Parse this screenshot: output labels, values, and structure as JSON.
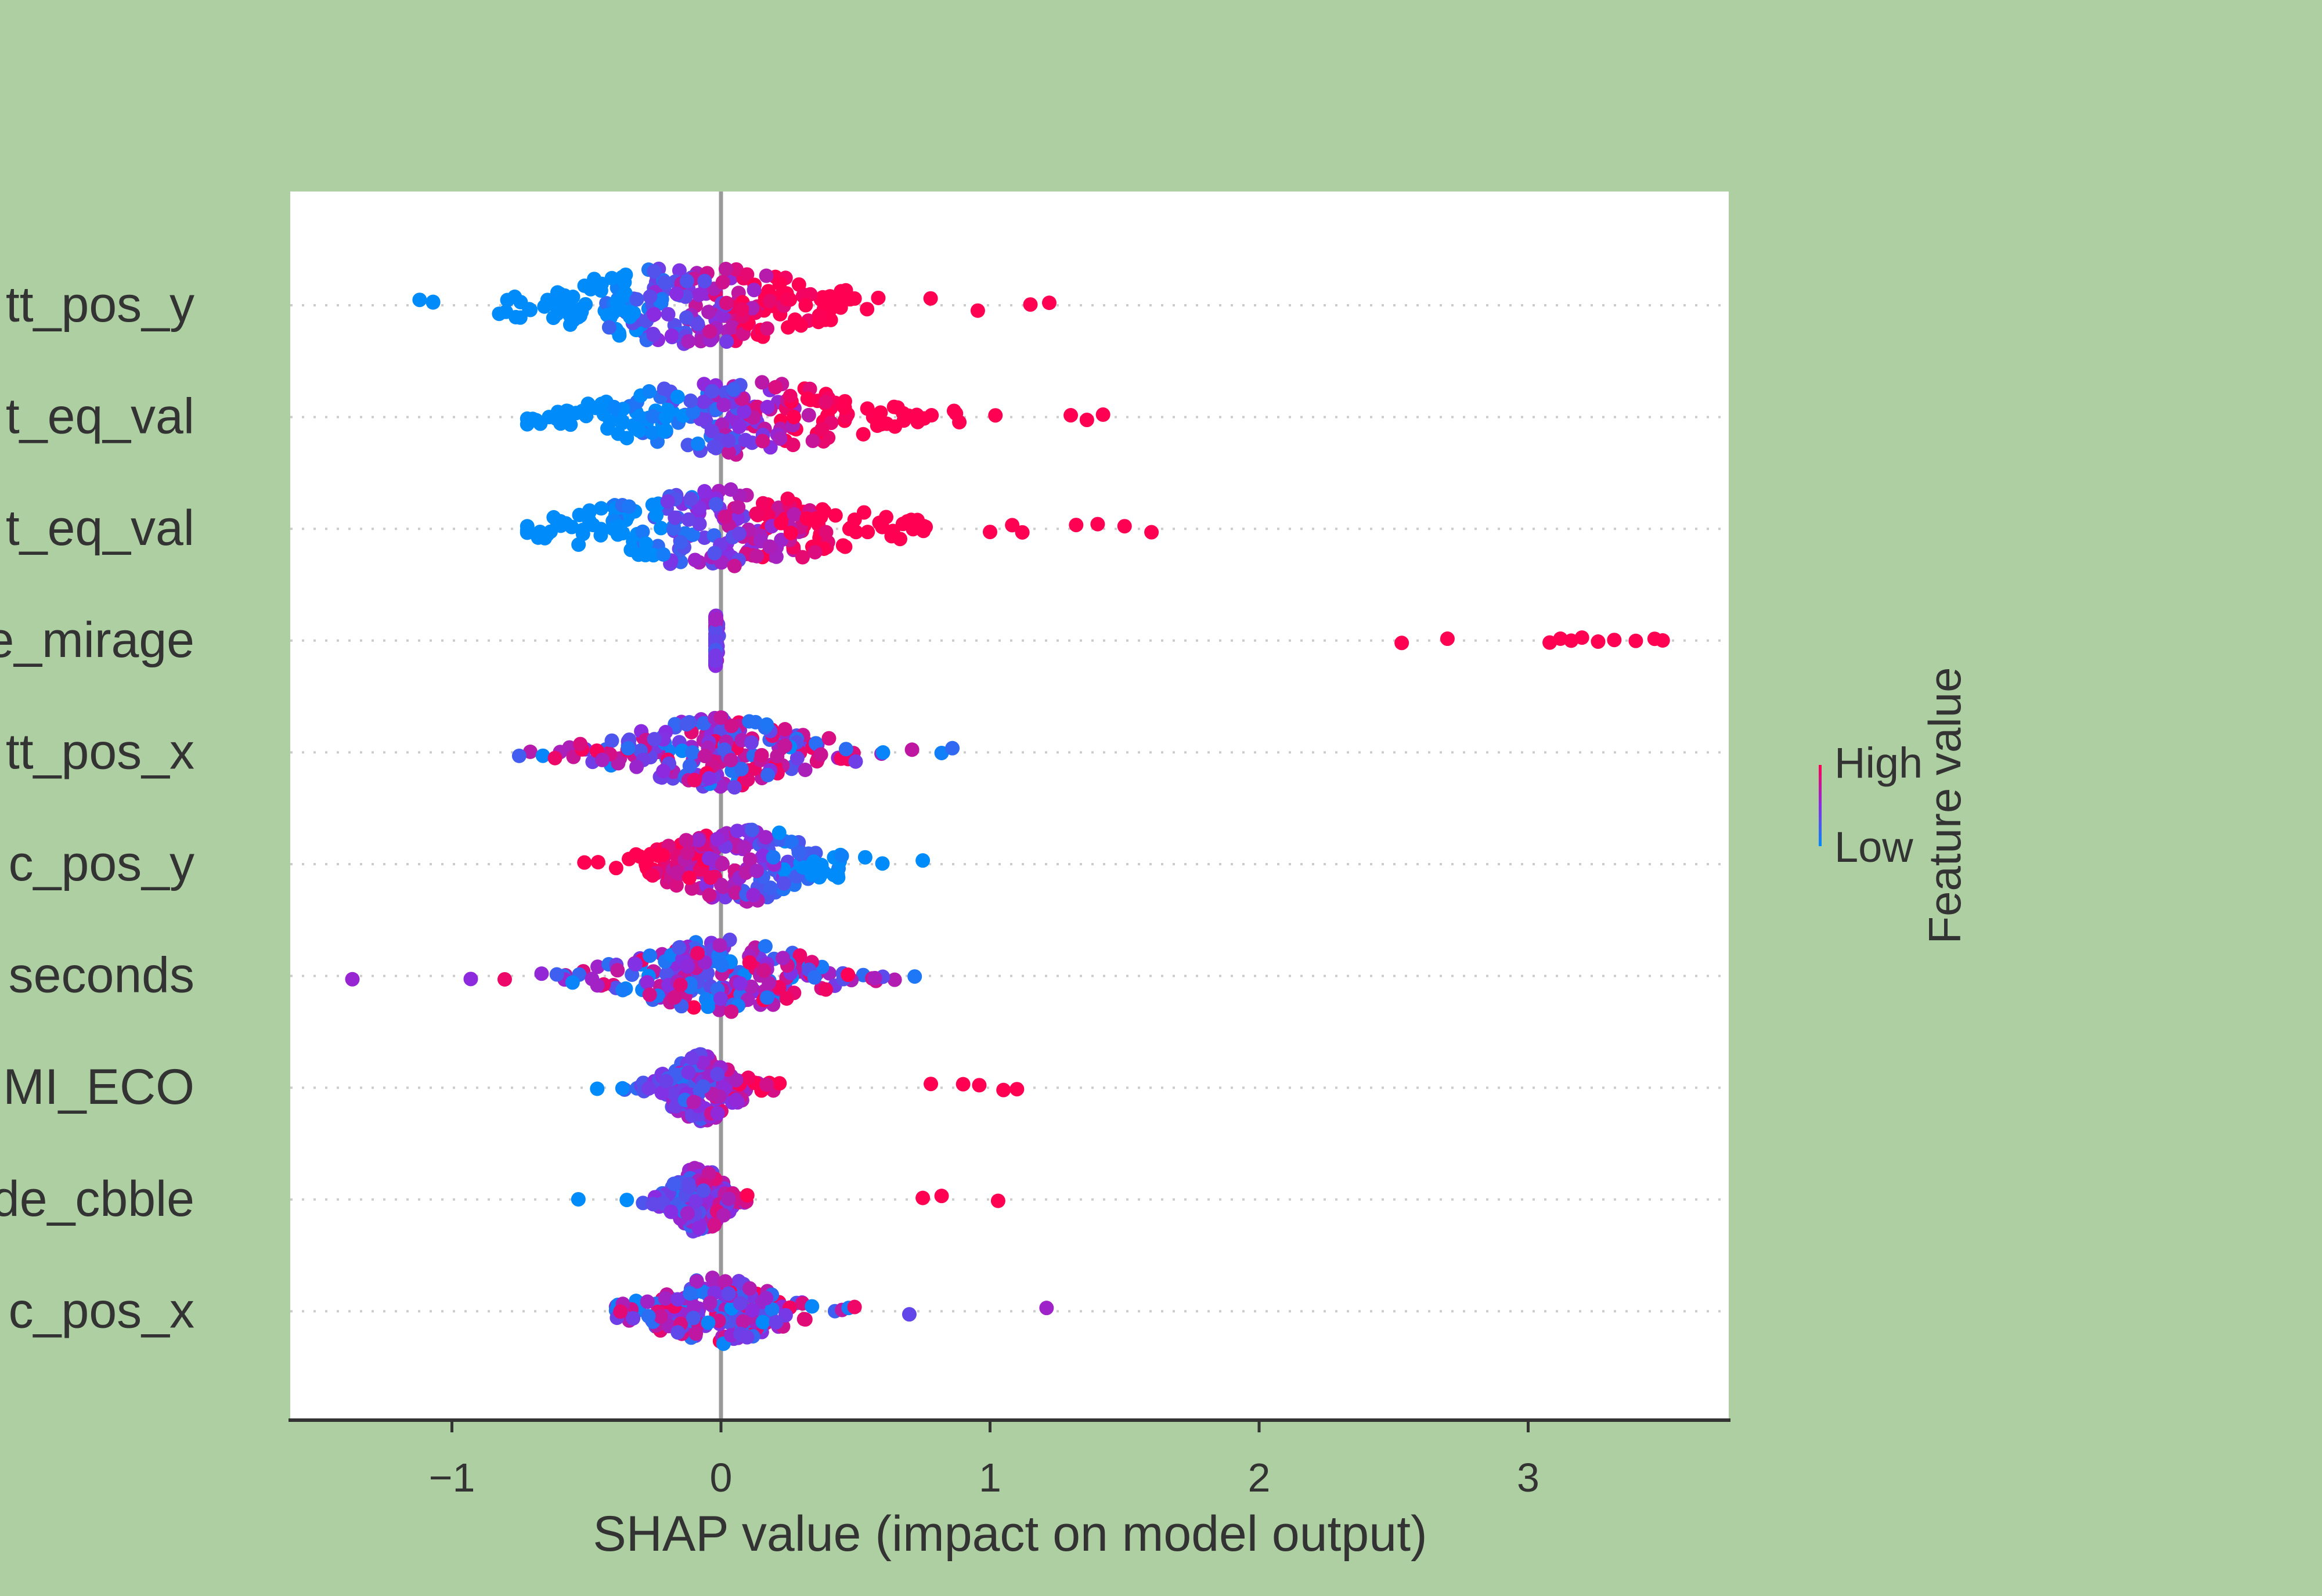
{
  "chart_data": {
    "type": "scatter",
    "subtype": "shap-beeswarm",
    "title": "",
    "xlabel": "SHAP value (impact on model output)",
    "ylabel": "",
    "xlim": [
      -1.6,
      3.75
    ],
    "xticks": [
      -1,
      0,
      1,
      2,
      3
    ],
    "xtick_labels": [
      "−1",
      "0",
      "1",
      "2",
      "3"
    ],
    "features": [
      {
        "label": "tt_pos_y",
        "min": -1.1,
        "max": 1.2,
        "center": -0.1,
        "spread": 0.38,
        "density": 1.0,
        "width": 1.0,
        "color_trend": 1,
        "outliers": [
          -1.12,
          1.22,
          1.15
        ]
      },
      {
        "label": "t_eq_val",
        "min": -0.75,
        "max": 1.45,
        "center": 0.05,
        "spread": 0.35,
        "density": 0.9,
        "width": 0.95,
        "color_trend": 1,
        "outliers": [
          1.3,
          1.36,
          1.42,
          1.02
        ]
      },
      {
        "label": "t_eq_val",
        "min": -0.75,
        "max": 1.6,
        "center": 0.0,
        "spread": 0.36,
        "density": 0.95,
        "width": 1.0,
        "color_trend": 1,
        "outliers": [
          -0.72,
          1.0,
          1.12,
          1.32,
          1.4,
          1.5,
          1.6
        ]
      },
      {
        "label": "e_mirage",
        "min": -0.05,
        "max": 3.5,
        "center": -0.03,
        "spread": 0.01,
        "density": 0.6,
        "width": 0.65,
        "color_trend": 1,
        "outliers": [
          2.53,
          2.7,
          3.08,
          3.12,
          3.16,
          3.2,
          3.26,
          3.32,
          3.4,
          3.47,
          3.5
        ]
      },
      {
        "label": "tt_pos_x",
        "min": -0.78,
        "max": 0.87,
        "center": 0.0,
        "spread": 0.27,
        "density": 0.85,
        "width": 0.9,
        "color_trend": 0,
        "outliers": [
          -0.75,
          0.71,
          0.86
        ]
      },
      {
        "label": "c_pos_y",
        "min": -0.6,
        "max": 0.76,
        "center": 0.08,
        "spread": 0.22,
        "density": 0.85,
        "width": 0.95,
        "color_trend": -1,
        "outliers": [
          0.6,
          0.75
        ]
      },
      {
        "label": "seconds",
        "min": -1.37,
        "max": 0.73,
        "center": 0.0,
        "spread": 0.25,
        "density": 0.85,
        "width": 0.95,
        "color_trend": 0,
        "outliers": [
          -1.37,
          -0.93,
          0.72
        ]
      },
      {
        "label": "MI_ECO",
        "min": -0.47,
        "max": 1.1,
        "center": -0.07,
        "spread": 0.1,
        "density": 0.8,
        "width": 0.85,
        "color_trend": 1,
        "outliers": [
          -0.46,
          0.78,
          0.9,
          0.96,
          1.05,
          1.1
        ]
      },
      {
        "label": "de_cbble",
        "min": -0.53,
        "max": 1.03,
        "center": -0.08,
        "spread": 0.07,
        "density": 0.8,
        "width": 0.85,
        "color_trend": 1,
        "outliers": [
          -0.53,
          -0.35,
          0.75,
          0.82,
          1.03
        ]
      },
      {
        "label": "c_pos_x",
        "min": -0.42,
        "max": 1.21,
        "center": -0.02,
        "spread": 0.18,
        "density": 0.8,
        "width": 0.85,
        "color_trend": 0,
        "outliers": [
          0.7,
          1.21
        ]
      }
    ],
    "colorbar": {
      "title": "Feature value",
      "high_label": "High",
      "low_label": "Low"
    },
    "colors": {
      "high": "#ff0052",
      "low": "#008bfb",
      "mid": "#8a2be2",
      "zero_line": "#999999",
      "grid": "#cccccc",
      "panel": "#ffffff",
      "background": "#aecfa2"
    },
    "grid": "dotted horizontal",
    "legend_position": "right"
  }
}
